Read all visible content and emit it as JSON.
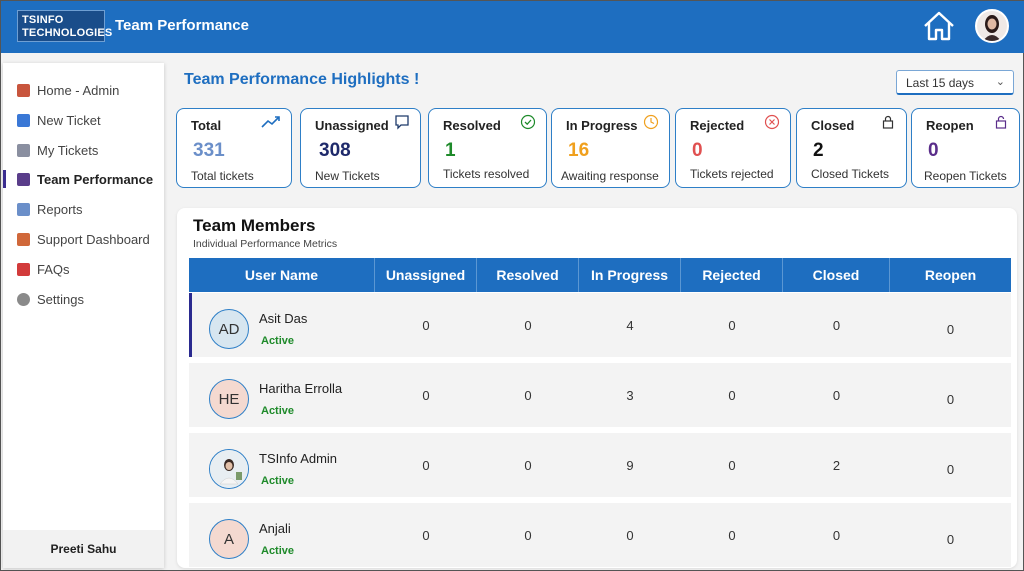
{
  "app": {
    "logo_line1": "TSINFO",
    "logo_line2": "TECHNOLOGIES",
    "title": "Team Performance"
  },
  "sidebar": {
    "items": [
      {
        "label": "Home - Admin",
        "icon": "home-icon",
        "color": "#c8553d"
      },
      {
        "label": "New Ticket",
        "icon": "new-badge-icon",
        "color": "#3a78d6"
      },
      {
        "label": "My Tickets",
        "icon": "tickets-icon",
        "color": "#8a8fa0"
      },
      {
        "label": "Team Performance",
        "icon": "team-icon",
        "color": "#5a3d8a",
        "active": true
      },
      {
        "label": "Reports",
        "icon": "chart-icon",
        "color": "#6b8fc9"
      },
      {
        "label": "Support Dashboard",
        "icon": "dashboard-icon",
        "color": "#d0683a"
      },
      {
        "label": "FAQs",
        "icon": "question-icon",
        "color": "#d23b3b"
      },
      {
        "label": "Settings",
        "icon": "gear-icon",
        "color": "#8a8a8a"
      }
    ],
    "user_name": "Preeti Sahu"
  },
  "highlights": {
    "title": "Team Performance Highlights !",
    "range": "Last 15 days"
  },
  "cards": [
    {
      "title": "Total",
      "value": "331",
      "sub": "Total tickets",
      "icon": "trend-up-icon",
      "color": "#6b8fc9"
    },
    {
      "title": "Unassigned",
      "value": "308",
      "sub": "New Tickets",
      "icon": "comment-icon",
      "color": "#1f2a6b"
    },
    {
      "title": "Resolved",
      "value": "1",
      "sub": "Tickets resolved",
      "icon": "check-circle-icon",
      "color": "#1e8a2a"
    },
    {
      "title": "In Progress",
      "value": "16",
      "sub": "Awaiting response",
      "icon": "clock-icon",
      "color": "#f0a01e"
    },
    {
      "title": "Rejected",
      "value": "0",
      "sub": "Tickets rejected",
      "icon": "x-circle-icon",
      "color": "#e05050"
    },
    {
      "title": "Closed",
      "value": "2",
      "sub": "Closed Tickets",
      "icon": "lock-icon",
      "color": "#111111"
    },
    {
      "title": "Reopen",
      "value": "0",
      "sub": "Reopen Tickets",
      "icon": "unlock-icon",
      "color": "#5a2d8a"
    }
  ],
  "team": {
    "title": "Team Members",
    "subtitle": "Individual Performance Metrics",
    "columns": [
      "User Name",
      "Unassigned",
      "Resolved",
      "In Progress",
      "Rejected",
      "Closed",
      "Reopen"
    ],
    "rows": [
      {
        "initials": "AD",
        "name": "Asit Das",
        "status": "Active",
        "avatar_bg": "#d7e6f0",
        "values": [
          "0",
          "0",
          "4",
          "0",
          "0",
          "0"
        ]
      },
      {
        "initials": "HE",
        "name": "Haritha Errolla",
        "status": "Active",
        "avatar_bg": "#f4d9d0",
        "values": [
          "0",
          "0",
          "3",
          "0",
          "0",
          "0"
        ]
      },
      {
        "initials": "",
        "name": "TSInfo Admin",
        "status": "Active",
        "avatar_bg": "#e8eef2",
        "values": [
          "0",
          "0",
          "9",
          "0",
          "2",
          "0"
        ]
      },
      {
        "initials": "A",
        "name": "Anjali",
        "status": "Active",
        "avatar_bg": "#f4d9d0",
        "values": [
          "0",
          "0",
          "0",
          "0",
          "0",
          "0"
        ]
      }
    ]
  }
}
